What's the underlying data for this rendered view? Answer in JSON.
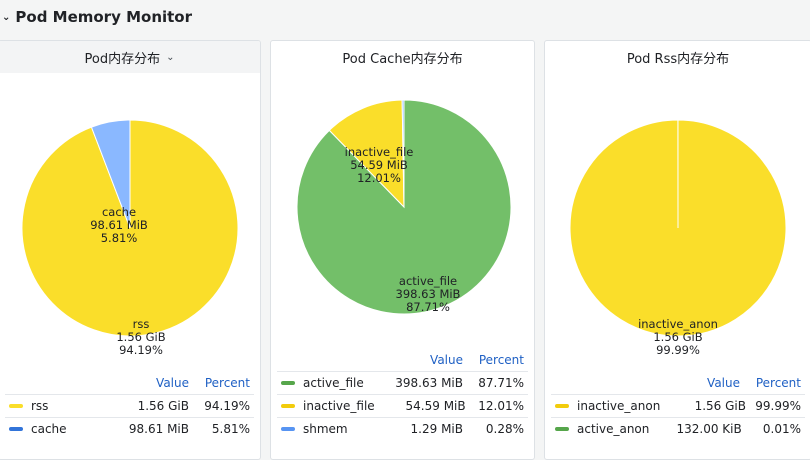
{
  "row": {
    "title": "Pod Memory Monitor"
  },
  "legend_headers": {
    "value": "Value",
    "percent": "Percent"
  },
  "chart_data": [
    {
      "type": "pie",
      "title": "Pod内存分布",
      "slices": [
        {
          "name": "rss",
          "value": "1.56 GiB",
          "percent": 94.19,
          "percent_label": "94.19%",
          "color": "#fade2a"
        },
        {
          "name": "cache",
          "value": "98.61 MiB",
          "percent": 5.81,
          "percent_label": "5.81%",
          "color": "#8ab8ff",
          "legend_color": "#3274d9"
        }
      ]
    },
    {
      "type": "pie",
      "title": "Pod Cache内存分布",
      "slices": [
        {
          "name": "active_file",
          "value": "398.63 MiB",
          "percent": 87.71,
          "percent_label": "87.71%",
          "color": "#73bf69",
          "legend_color": "#56a64b"
        },
        {
          "name": "inactive_file",
          "value": "54.59 MiB",
          "percent": 12.01,
          "percent_label": "12.01%",
          "color": "#fade2a",
          "legend_color": "#f2cc0c"
        },
        {
          "name": "shmem",
          "value": "1.29 MiB",
          "percent": 0.28,
          "percent_label": "0.28%",
          "color": "#8ab8ff",
          "legend_color": "#5794f2"
        }
      ]
    },
    {
      "type": "pie",
      "title": "Pod Rss内存分布",
      "slices": [
        {
          "name": "inactive_anon",
          "value": "1.56 GiB",
          "percent": 99.99,
          "percent_label": "99.99%",
          "color": "#fade2a",
          "legend_color": "#f2cc0c"
        },
        {
          "name": "active_anon",
          "value": "132.00 KiB",
          "percent": 0.01,
          "percent_label": "0.01%",
          "color": "#73bf69",
          "legend_color": "#56a64b"
        }
      ]
    }
  ]
}
